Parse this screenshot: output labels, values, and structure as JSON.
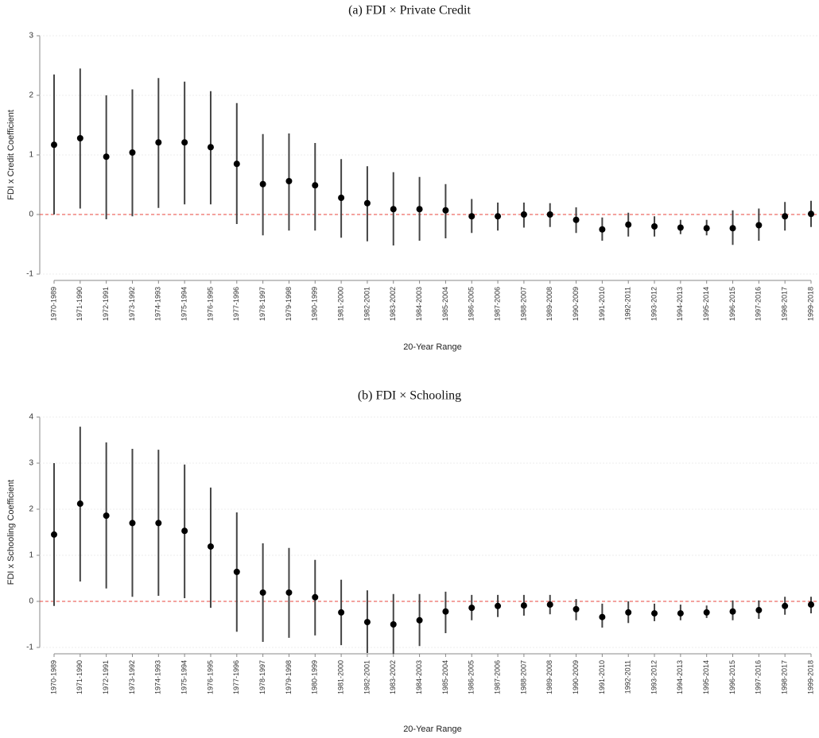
{
  "chart_data": [
    {
      "type": "errorbar",
      "title": "(a)  FDI × Private Credit",
      "xlabel": "20-Year Range",
      "ylabel": "FDI x Credit Coefficient",
      "categories": [
        "1970-1989",
        "1971-1990",
        "1972-1991",
        "1973-1992",
        "1974-1993",
        "1975-1994",
        "1976-1995",
        "1977-1996",
        "1978-1997",
        "1979-1998",
        "1980-1999",
        "1981-2000",
        "1982-2001",
        "1983-2002",
        "1984-2003",
        "1985-2004",
        "1986-2005",
        "1987-2006",
        "1988-2007",
        "1989-2008",
        "1990-2009",
        "1991-2010",
        "1992-2011",
        "1993-2012",
        "1994-2013",
        "1995-2014",
        "1996-2015",
        "1997-2016",
        "1998-2017",
        "1999-2018"
      ],
      "values": [
        1.17,
        1.28,
        0.97,
        1.04,
        1.21,
        1.21,
        1.13,
        0.85,
        0.51,
        0.56,
        0.49,
        0.28,
        0.19,
        0.09,
        0.09,
        0.07,
        -0.03,
        -0.03,
        0.0,
        0.0,
        -0.09,
        -0.25,
        -0.17,
        -0.2,
        -0.22,
        -0.23,
        -0.23,
        -0.18,
        -0.03,
        0.01
      ],
      "ci_low": [
        0.0,
        0.1,
        -0.08,
        -0.03,
        0.11,
        0.17,
        0.17,
        -0.16,
        -0.35,
        -0.27,
        -0.27,
        -0.39,
        -0.45,
        -0.52,
        -0.44,
        -0.4,
        -0.31,
        -0.27,
        -0.22,
        -0.21,
        -0.31,
        -0.44,
        -0.37,
        -0.37,
        -0.33,
        -0.35,
        -0.51,
        -0.44,
        -0.27,
        -0.21
      ],
      "ci_high": [
        2.35,
        2.45,
        2.0,
        2.1,
        2.29,
        2.23,
        2.07,
        1.87,
        1.35,
        1.36,
        1.2,
        0.93,
        0.81,
        0.71,
        0.63,
        0.51,
        0.26,
        0.2,
        0.2,
        0.19,
        0.12,
        -0.05,
        0.03,
        -0.03,
        -0.09,
        -0.09,
        0.07,
        0.1,
        0.21,
        0.23
      ],
      "color": "#000000",
      "ylim": [
        -1,
        3
      ],
      "yticks": [
        -1,
        0,
        1,
        2,
        3
      ],
      "grid": true,
      "refline": 0,
      "refline_color": "#e8453c"
    },
    {
      "type": "errorbar",
      "title": "(b)  FDI × Schooling",
      "xlabel": "20-Year Range",
      "ylabel": "FDI x Schooling Coefficient",
      "categories": [
        "1970-1989",
        "1971-1990",
        "1972-1991",
        "1973-1992",
        "1974-1993",
        "1975-1994",
        "1976-1995",
        "1977-1996",
        "1978-1997",
        "1979-1998",
        "1980-1999",
        "1981-2000",
        "1982-2001",
        "1983-2002",
        "1984-2003",
        "1985-2004",
        "1986-2005",
        "1987-2006",
        "1988-2007",
        "1989-2008",
        "1990-2009",
        "1991-2010",
        "1992-2011",
        "1993-2012",
        "1994-2013",
        "1995-2014",
        "1996-2015",
        "1997-2016",
        "1998-2017",
        "1999-2018"
      ],
      "values": [
        1.45,
        2.12,
        1.86,
        1.7,
        1.7,
        1.53,
        1.19,
        0.64,
        0.19,
        0.19,
        0.09,
        -0.24,
        -0.45,
        -0.5,
        -0.41,
        -0.22,
        -0.14,
        -0.1,
        -0.09,
        -0.07,
        -0.17,
        -0.34,
        -0.24,
        -0.26,
        -0.26,
        -0.24,
        -0.22,
        -0.19,
        -0.1,
        -0.07
      ],
      "ci_low": [
        -0.1,
        0.43,
        0.28,
        0.1,
        0.12,
        0.07,
        -0.14,
        -0.66,
        -0.88,
        -0.79,
        -0.74,
        -0.95,
        -1.12,
        -1.14,
        -0.97,
        -0.69,
        -0.41,
        -0.34,
        -0.31,
        -0.28,
        -0.41,
        -0.57,
        -0.47,
        -0.43,
        -0.41,
        -0.36,
        -0.41,
        -0.38,
        -0.29,
        -0.26
      ],
      "ci_high": [
        3.0,
        3.79,
        3.45,
        3.31,
        3.29,
        2.97,
        2.47,
        1.93,
        1.26,
        1.16,
        0.9,
        0.47,
        0.24,
        0.16,
        0.16,
        0.21,
        0.14,
        0.14,
        0.14,
        0.14,
        0.05,
        -0.05,
        0.0,
        -0.05,
        -0.07,
        -0.09,
        0.02,
        0.02,
        0.1,
        0.1
      ],
      "color": "#000000",
      "ylim": [
        -1,
        4
      ],
      "yticks": [
        -1,
        0,
        1,
        2,
        3,
        4
      ],
      "grid": true,
      "refline": 0,
      "refline_color": "#e8453c"
    }
  ]
}
